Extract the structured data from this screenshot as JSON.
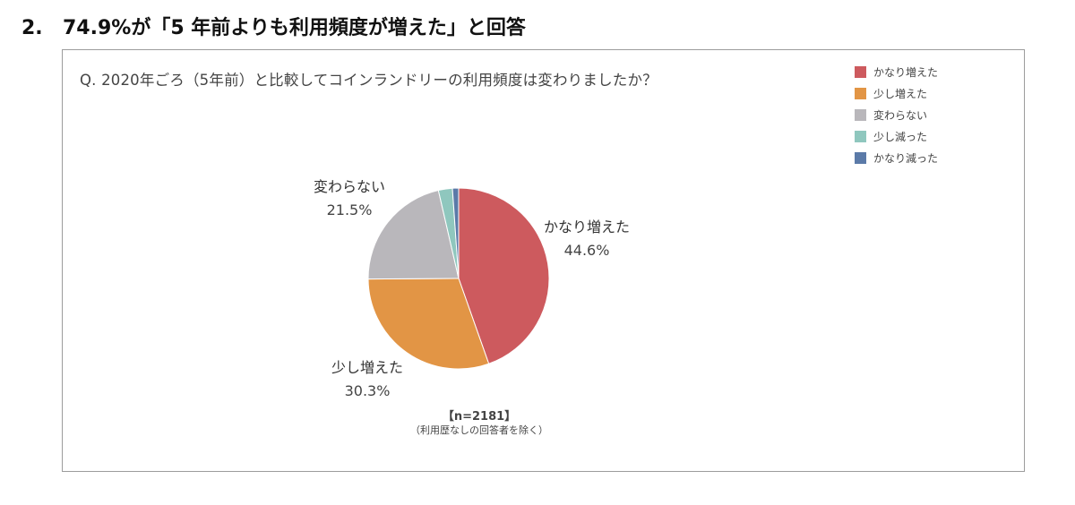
{
  "heading": {
    "number": "2.",
    "text": "74.9%が「5 年前よりも利用頻度が増えた」と回答"
  },
  "colors": {
    "much_increased": "#cd5a5e",
    "slightly_increased": "#e29545",
    "unchanged": "#b9b7bb",
    "slightly_decreased": "#8fc7be",
    "much_decreased": "#5b7aa8"
  },
  "chart_data": {
    "type": "pie",
    "title": "Q. 2020年ごろ（5年前）と比較してコインランドリーの利用頻度は変わりましたか？",
    "legend_position": "top-right",
    "slices": [
      {
        "name": "かなり増えた",
        "value": 44.6,
        "pct_label": "44.6%",
        "color": "#cd5a5e",
        "labeled": true
      },
      {
        "name": "少し増えた",
        "value": 30.3,
        "pct_label": "30.3%",
        "color": "#e29545",
        "labeled": true
      },
      {
        "name": "変わらない",
        "value": 21.5,
        "pct_label": "21.5%",
        "color": "#b9b7bb",
        "labeled": true
      },
      {
        "name": "少し減った",
        "value": 2.5,
        "pct_label": "",
        "color": "#8fc7be",
        "labeled": false
      },
      {
        "name": "かなり減った",
        "value": 1.1,
        "pct_label": "",
        "color": "#5b7aa8",
        "labeled": false
      }
    ],
    "legend": [
      "かなり増えた",
      "少し増えた",
      "変わらない",
      "少し減った",
      "かなり減った"
    ],
    "n_label": "【n=2181】",
    "note": "（利用歴なしの回答者を除く）"
  }
}
